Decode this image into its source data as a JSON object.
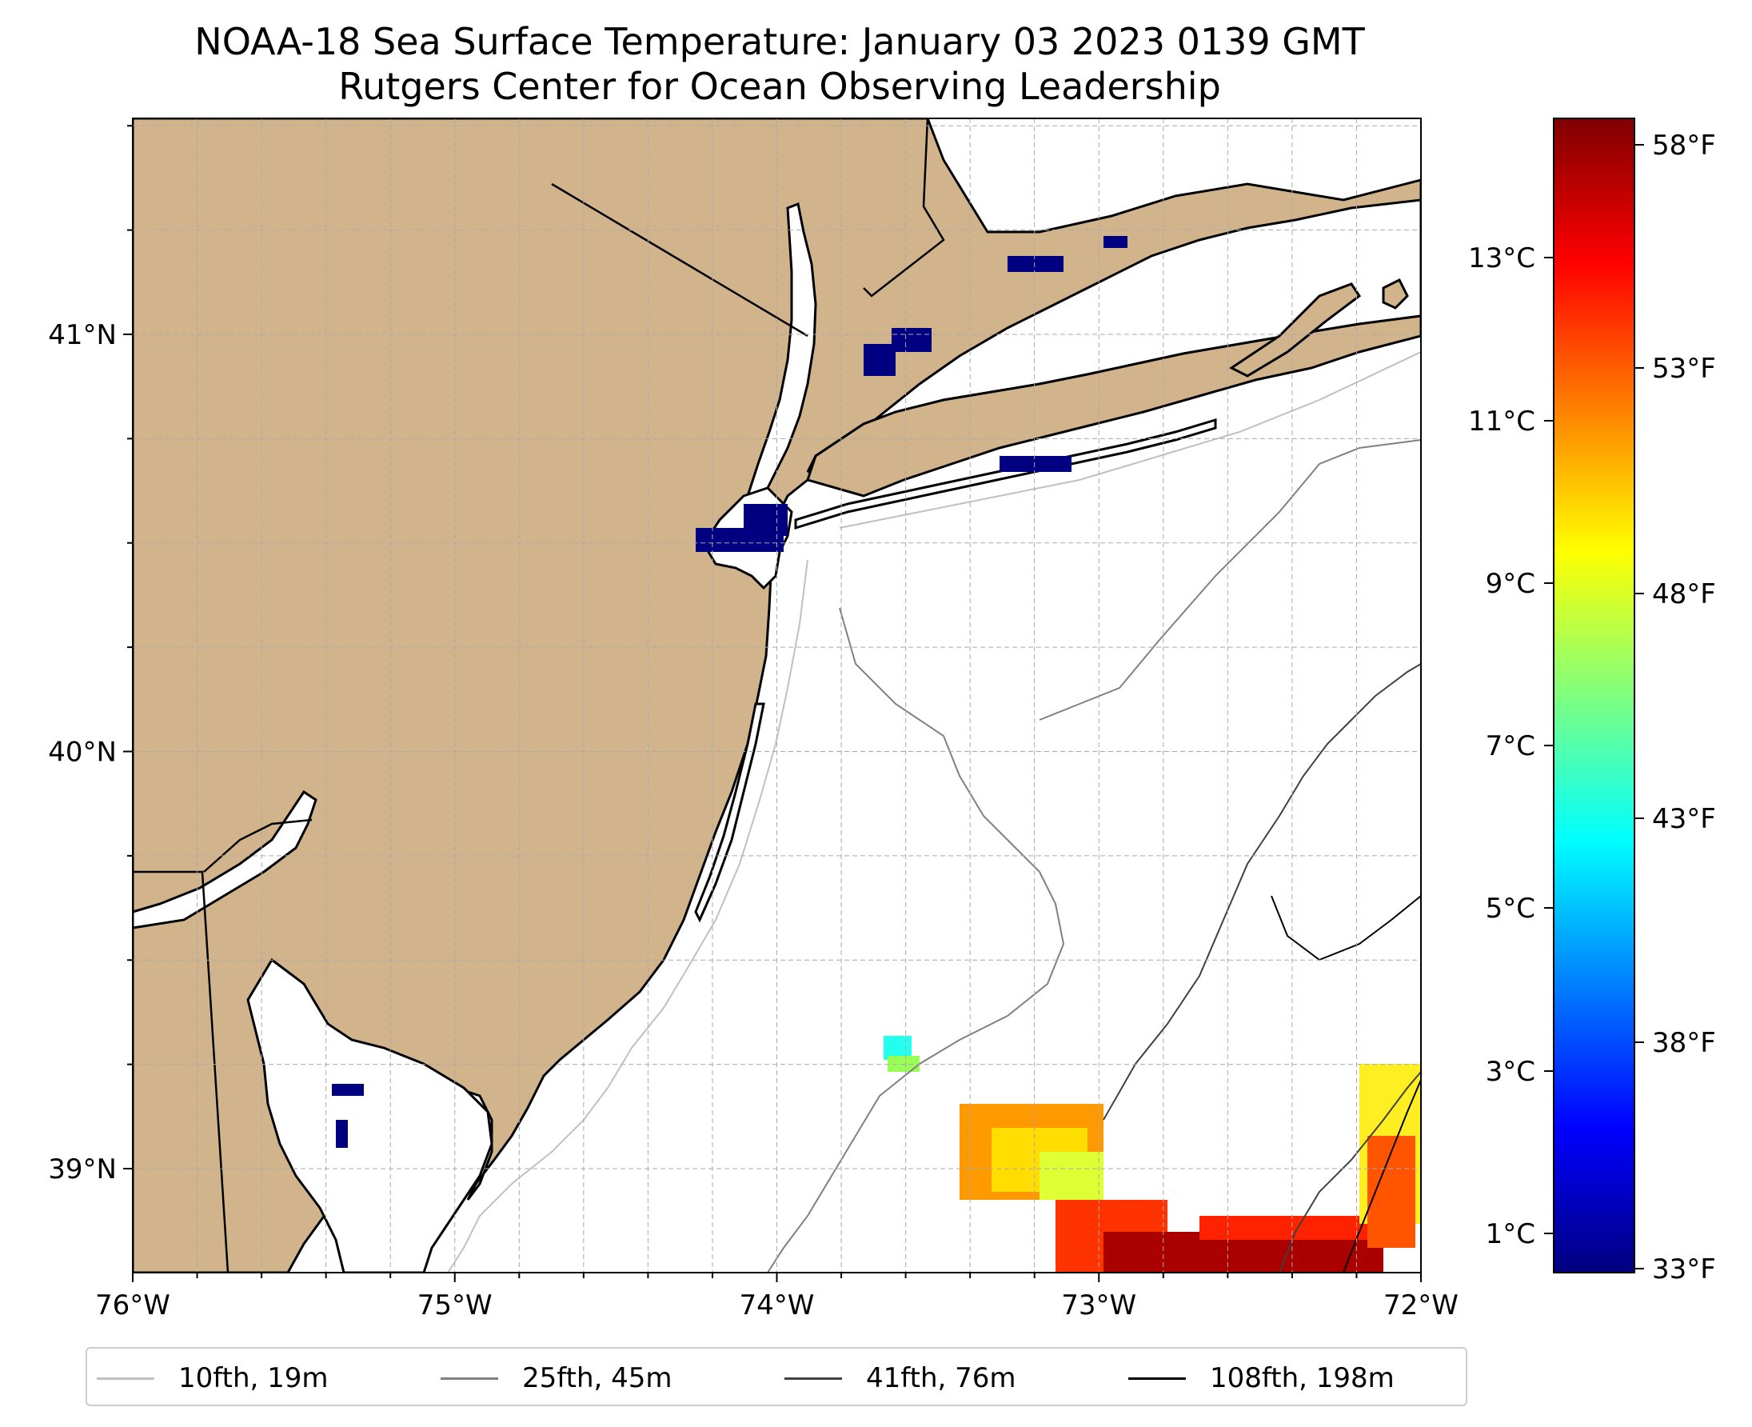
{
  "title": "NOAA-18 Sea Surface Temperature: January 03 2023 0139 GMT",
  "subtitle": "Rutgers Center for Ocean Observing Leadership",
  "map": {
    "lon_ticks": [
      "76°W",
      "75°W",
      "74°W",
      "73°W",
      "72°W"
    ],
    "lat_ticks": [
      "41°N",
      "40°N",
      "39°N"
    ],
    "land_color": "#d2b48c",
    "water_color": "#ffffff",
    "missing_sst_color": "#000080"
  },
  "colorbar": {
    "celsius_ticks": [
      "13°C",
      "11°C",
      "9°C",
      "7°C",
      "5°C",
      "3°C",
      "1°C"
    ],
    "fahrenheit_ticks": [
      "58°F",
      "53°F",
      "48°F",
      "43°F",
      "38°F",
      "33°F"
    ],
    "colormap": "jet",
    "colors": [
      "#00007f",
      "#0000ff",
      "#007fff",
      "#00ffff",
      "#7fff7f",
      "#ffff00",
      "#ff7f00",
      "#ff0000",
      "#7f0000"
    ]
  },
  "legend": [
    {
      "label": "10fth, 19m",
      "color": "#c0c0c0"
    },
    {
      "label": "25fth, 45m",
      "color": "#808080"
    },
    {
      "label": "41fth, 76m",
      "color": "#404040"
    },
    {
      "label": "108fth, 198m",
      "color": "#000000"
    }
  ]
}
